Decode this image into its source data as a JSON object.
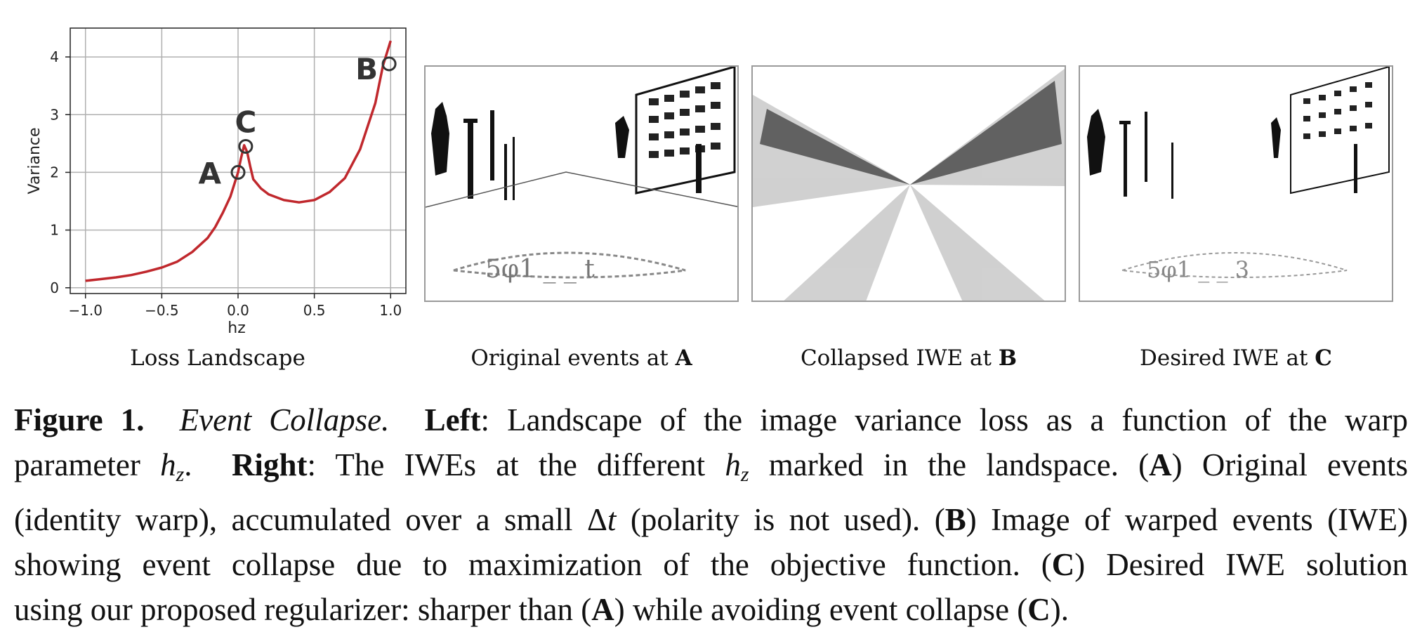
{
  "chart_data": {
    "type": "line",
    "title": "",
    "xlabel": "hz",
    "ylabel": "Variance",
    "xlim": [
      -1.1,
      1.1
    ],
    "ylim": [
      -0.1,
      4.5
    ],
    "xticks": [
      -1.0,
      -0.5,
      0.0,
      0.5,
      1.0
    ],
    "xtick_labels": [
      "−1.0",
      "−0.5",
      "0.0",
      "0.5",
      "1.0"
    ],
    "yticks": [
      0,
      1,
      2,
      3,
      4
    ],
    "ytick_labels": [
      "0",
      "1",
      "2",
      "3",
      "4"
    ],
    "grid": true,
    "line_color": "#c0282d",
    "series": [
      {
        "x": [
          -1.0,
          -0.9,
          -0.8,
          -0.7,
          -0.6,
          -0.5,
          -0.4,
          -0.3,
          -0.2,
          -0.15,
          -0.1,
          -0.05,
          0.0,
          0.02,
          0.04,
          0.06,
          0.08,
          0.1,
          0.15,
          0.2,
          0.3,
          0.4,
          0.5,
          0.6,
          0.7,
          0.8,
          0.9,
          0.95,
          1.0
        ],
        "y": [
          0.12,
          0.15,
          0.18,
          0.22,
          0.28,
          0.35,
          0.45,
          0.62,
          0.86,
          1.05,
          1.3,
          1.58,
          2.0,
          2.25,
          2.47,
          2.35,
          2.1,
          1.88,
          1.72,
          1.62,
          1.52,
          1.48,
          1.52,
          1.66,
          1.9,
          2.4,
          3.2,
          3.85,
          4.28
        ]
      }
    ],
    "annotations": [
      {
        "label": "A",
        "x": 0.0,
        "y": 2.0
      },
      {
        "label": "C",
        "x": 0.05,
        "y": 2.45
      },
      {
        "label": "B",
        "x": 0.99,
        "y": 3.88
      }
    ]
  },
  "panels": {
    "loss_caption": "Loss Landscape",
    "original": {
      "text": "Original events at ",
      "bold": "A"
    },
    "collapsed": {
      "text": "Collapsed IWE at ",
      "bold": "B"
    },
    "desired": {
      "text": "Desired IWE at ",
      "bold": "C"
    }
  },
  "figure_caption": {
    "label": "Figure 1.",
    "title": "Event Collapse.",
    "left_label": "Left",
    "left_text_1": ": Landscape of the image variance loss as a function of the warp",
    "left_text_2": "parameter ",
    "hz_base": "h",
    "hz_sub": "z",
    "right_label": "Right",
    "right_text_1": ": The IWEs at the different ",
    "right_text_2": " marked in the landspace.  (",
    "a_label": "A",
    "a_text": ") Original events",
    "line3": "(identity warp), accumulated over a small Δ",
    "t_italic": "t",
    "line3b": " (polarity is not used).  (",
    "b_label": "B",
    "b_text": ") Image of warped events (IWE)",
    "line4": "showing event collapse due to maximization of the objective function.  (",
    "c_label": "C",
    "c_text": ") Desired IWE solution",
    "line5a": "using our proposed regularizer: sharper than (",
    "line5b": ") while avoiding event collapse (",
    "line5c": ")."
  }
}
